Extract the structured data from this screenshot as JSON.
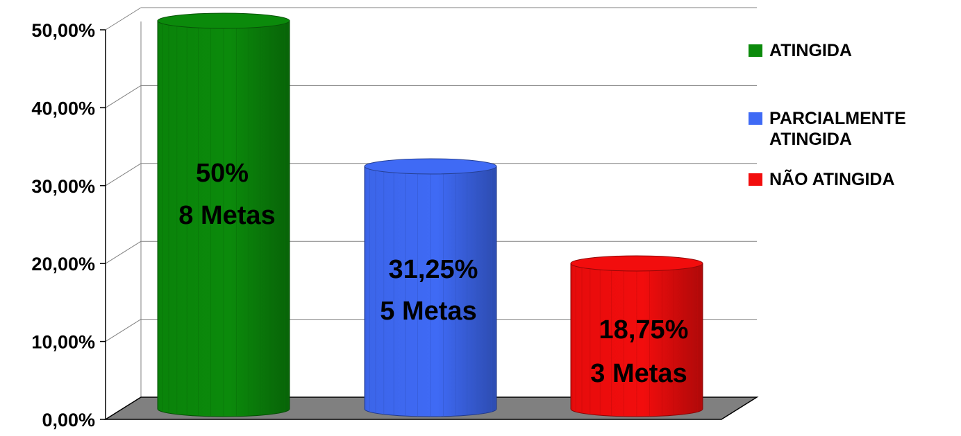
{
  "chart_data": {
    "type": "bar",
    "style": "3d-cylinder",
    "categories": [
      "ATINGIDA",
      "PARCIALMENTE ATINGIDA",
      "NÃO ATINGIDA"
    ],
    "values": [
      50,
      31.25,
      18.75
    ],
    "data_labels": [
      [
        "50%",
        "8 Metas"
      ],
      [
        "31,25%",
        "5 Metas"
      ],
      [
        "18,75%",
        "3 Metas"
      ]
    ],
    "colors": [
      "#0b8a0b",
      "#3f6af5",
      "#f20d0d"
    ],
    "title": "",
    "xlabel": "",
    "ylabel": "",
    "ylim": [
      0,
      50
    ],
    "y_ticks": [
      0,
      10,
      20,
      30,
      40,
      50
    ],
    "y_tick_labels": [
      "0,00%",
      "10,00%",
      "20,00%",
      "30,00%",
      "40,00%",
      "50,00%"
    ],
    "grid": true,
    "floor_color": "#808080",
    "legend": {
      "placement": "right",
      "entries": [
        {
          "lines": [
            "ATINGIDA"
          ],
          "color": "#0b8a0b"
        },
        {
          "lines": [
            "PARCIALMENTE",
            "ATINGIDA"
          ],
          "color": "#3f6af5"
        },
        {
          "lines": [
            "NÃO ATINGIDA"
          ],
          "color": "#f20d0d"
        }
      ]
    }
  }
}
